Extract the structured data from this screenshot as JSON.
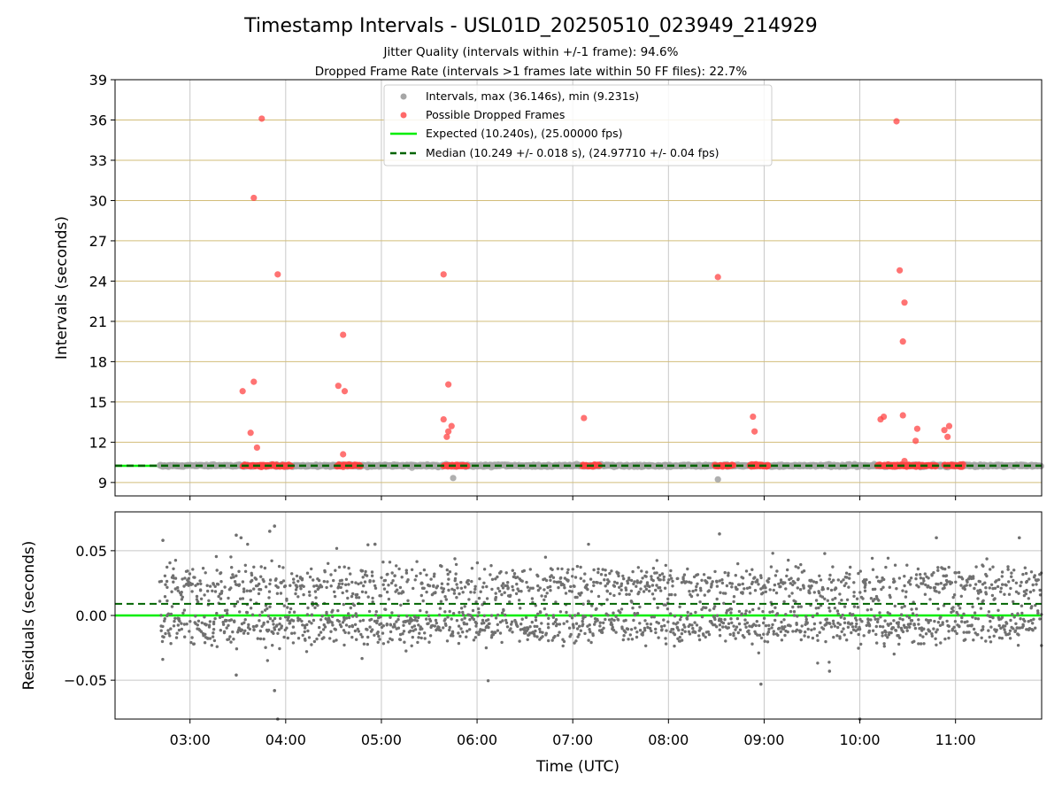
{
  "colors": {
    "interval_point": "#a6a6a6",
    "dropped_point": "#ff4444",
    "expected_line": "#00ee00",
    "median_line": "#006400",
    "hgrid": "#d2bd7a",
    "vgrid": "#c8c8c8",
    "residual_point": "#707070"
  },
  "chart_data": [
    {
      "type": "scatter",
      "panel": "intervals",
      "title": "Timestamp Intervals - USL01D_20250510_023949_214929",
      "subtitles": [
        "Jitter Quality (intervals within +/-1 frame): 94.6%",
        "Dropped Frame Rate (intervals >1 frames late within 50 FF files): 22.7%"
      ],
      "ylabel": "Intervals (seconds)",
      "xlim": [
        "02:13",
        "11:54"
      ],
      "ylim": [
        8.0,
        39.0
      ],
      "yticks": [
        9,
        12,
        15,
        18,
        21,
        24,
        27,
        30,
        33,
        36,
        39
      ],
      "grid": "on",
      "legend_position": "top-center",
      "legend": [
        "Intervals, max (36.146s), min (9.231s)",
        "Possible Dropped Frames",
        "Expected (10.240s), (25.00000 fps)",
        "Median (10.249 +/- 0.018 s), (24.97710 +/- 0.04 fps)"
      ],
      "expected_value": 10.24,
      "median_value": 10.249,
      "interval_data_range": [
        "02:41",
        "11:54"
      ],
      "interval_low_outliers": [
        {
          "x": "05:45",
          "y": 9.33
        },
        {
          "x": "08:31",
          "y": 9.23
        }
      ],
      "dropped_runs": [
        {
          "x": [
            "03:33",
            "04:04"
          ],
          "y": 10.25
        },
        {
          "x": [
            "04:32",
            "04:47"
          ],
          "y": 10.25
        },
        {
          "x": [
            "05:39",
            "05:54"
          ],
          "y": 10.25
        },
        {
          "x": [
            "07:06",
            "07:17"
          ],
          "y": 10.25
        },
        {
          "x": [
            "08:29",
            "08:41"
          ],
          "y": 10.25
        },
        {
          "x": [
            "08:51",
            "09:03"
          ],
          "y": 10.25
        },
        {
          "x": [
            "10:11",
            "10:48"
          ],
          "y": 10.25
        },
        {
          "x": [
            "10:53",
            "11:05"
          ],
          "y": 10.25
        }
      ],
      "dropped_outliers": [
        {
          "x": "03:45",
          "y": 36.1
        },
        {
          "x": "03:40",
          "y": 30.2
        },
        {
          "x": "03:55",
          "y": 24.5
        },
        {
          "x": "03:40",
          "y": 16.5
        },
        {
          "x": "03:33",
          "y": 15.8
        },
        {
          "x": "03:38",
          "y": 12.7
        },
        {
          "x": "03:42",
          "y": 11.6
        },
        {
          "x": "04:36",
          "y": 20.0
        },
        {
          "x": "04:33",
          "y": 16.2
        },
        {
          "x": "04:37",
          "y": 15.8
        },
        {
          "x": "04:36",
          "y": 11.1
        },
        {
          "x": "05:39",
          "y": 24.5
        },
        {
          "x": "05:42",
          "y": 16.3
        },
        {
          "x": "05:39",
          "y": 13.7
        },
        {
          "x": "05:44",
          "y": 13.2
        },
        {
          "x": "05:42",
          "y": 12.8
        },
        {
          "x": "05:41",
          "y": 12.4
        },
        {
          "x": "07:07",
          "y": 13.8
        },
        {
          "x": "08:31",
          "y": 24.3
        },
        {
          "x": "08:53",
          "y": 13.9
        },
        {
          "x": "08:54",
          "y": 12.8
        },
        {
          "x": "10:23",
          "y": 35.9
        },
        {
          "x": "10:25",
          "y": 24.8
        },
        {
          "x": "10:28",
          "y": 22.4
        },
        {
          "x": "10:27",
          "y": 19.5
        },
        {
          "x": "10:13",
          "y": 13.7
        },
        {
          "x": "10:15",
          "y": 13.9
        },
        {
          "x": "10:27",
          "y": 14.0
        },
        {
          "x": "10:36",
          "y": 13.0
        },
        {
          "x": "10:35",
          "y": 12.1
        },
        {
          "x": "10:28",
          "y": 10.6
        },
        {
          "x": "10:53",
          "y": 12.9
        },
        {
          "x": "10:56",
          "y": 13.2
        },
        {
          "x": "10:55",
          "y": 12.4
        }
      ]
    },
    {
      "type": "scatter",
      "panel": "residuals",
      "xlabel": "Time (UTC)",
      "ylabel": "Residuals (seconds)",
      "xlim": [
        "02:13",
        "11:54"
      ],
      "ylim": [
        -0.08,
        0.08
      ],
      "yticks": [
        -0.05,
        0.0,
        0.05
      ],
      "ytick_labels": [
        "−0.05",
        "0.00",
        "0.05"
      ],
      "xticks": [
        "03:00",
        "04:00",
        "05:00",
        "06:00",
        "07:00",
        "08:00",
        "09:00",
        "10:00",
        "11:00"
      ],
      "grid": "on",
      "expected_residual": 0.0,
      "median_residual": 0.009,
      "data_range": [
        "02:41",
        "11:54"
      ],
      "spread_note": "residuals scattered about 0.0 to 0.02 s",
      "notable_points": [
        {
          "x": "02:43",
          "y": 0.058
        },
        {
          "x": "03:29",
          "y": 0.062
        },
        {
          "x": "03:32",
          "y": 0.06
        },
        {
          "x": "03:50",
          "y": 0.065
        },
        {
          "x": "03:53",
          "y": 0.069
        },
        {
          "x": "04:56",
          "y": 0.055
        },
        {
          "x": "08:32",
          "y": 0.063
        },
        {
          "x": "10:48",
          "y": 0.06
        },
        {
          "x": "11:40",
          "y": 0.06
        },
        {
          "x": "03:53",
          "y": -0.058
        },
        {
          "x": "03:55",
          "y": -0.08
        },
        {
          "x": "08:58",
          "y": -0.053
        },
        {
          "x": "10:00",
          "y": -0.08
        },
        {
          "x": "03:29",
          "y": -0.046
        },
        {
          "x": "09:41",
          "y": -0.043
        }
      ]
    }
  ]
}
